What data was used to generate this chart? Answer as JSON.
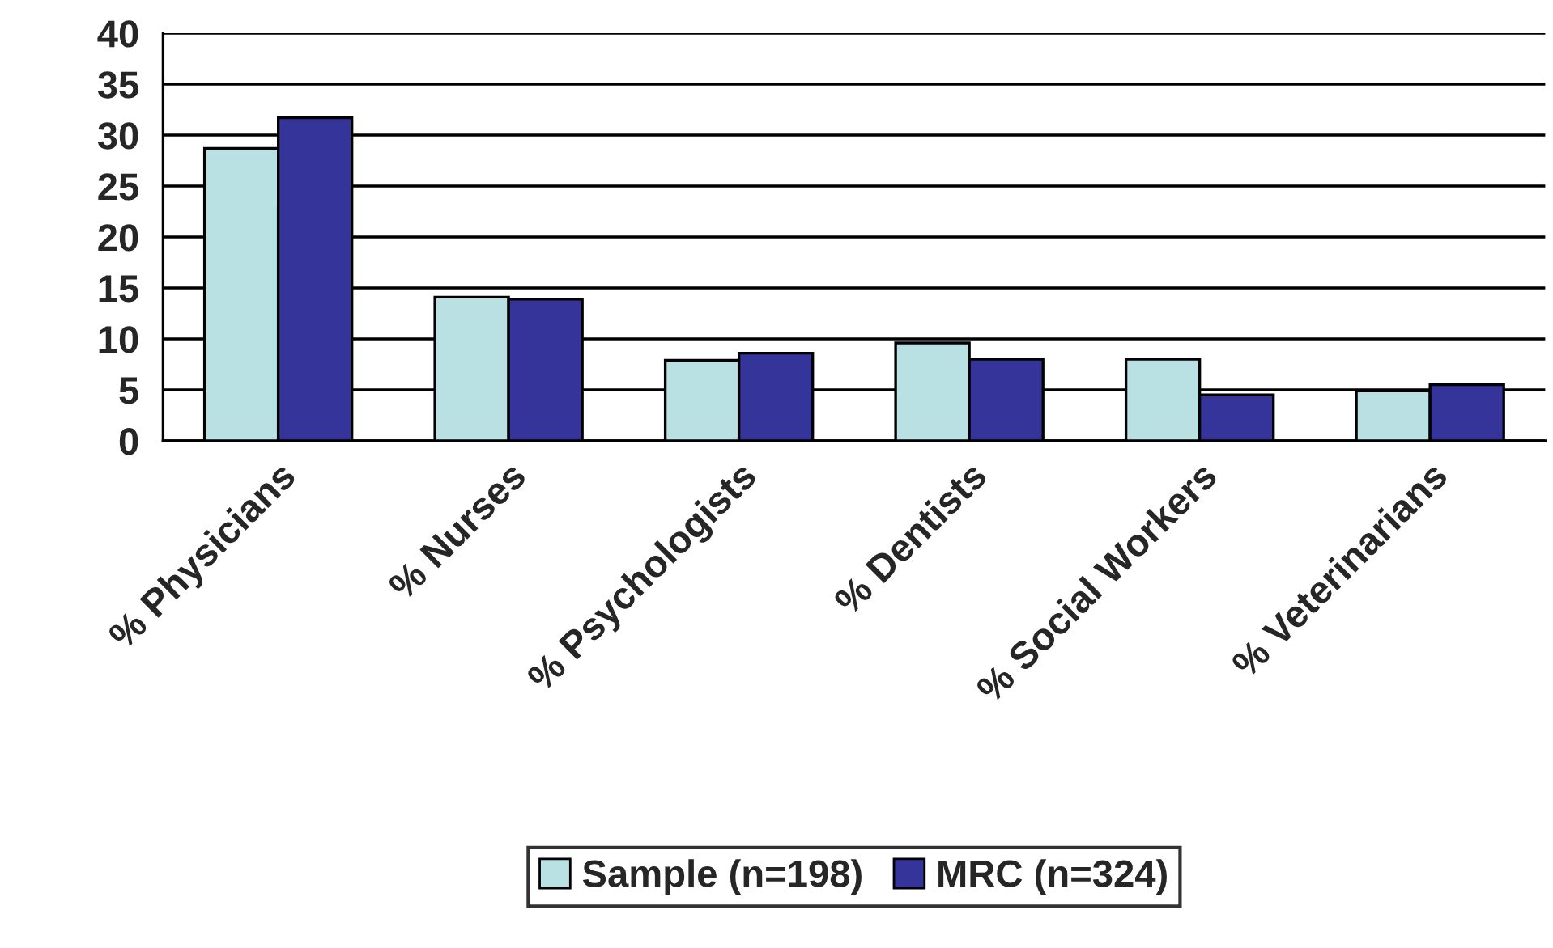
{
  "chart_data": {
    "type": "bar",
    "categories": [
      "% Physicians",
      "% Nurses",
      "% Psychologists",
      "% Dentists",
      "% Social Workers",
      "% Veterinarians"
    ],
    "series": [
      {
        "name": "Sample (n=198)",
        "color": "#b9e0e3",
        "values": [
          28.7,
          14.1,
          7.9,
          9.6,
          8.0,
          4.9
        ]
      },
      {
        "name": "MRC (n=324)",
        "color": "#35349a",
        "values": [
          31.7,
          13.9,
          8.6,
          8.0,
          4.5,
          5.5
        ]
      }
    ],
    "ylim": [
      0,
      40
    ],
    "yticks": [
      0,
      5,
      10,
      15,
      20,
      25,
      30,
      35,
      40
    ],
    "grid": "y",
    "legend": "bottom"
  }
}
